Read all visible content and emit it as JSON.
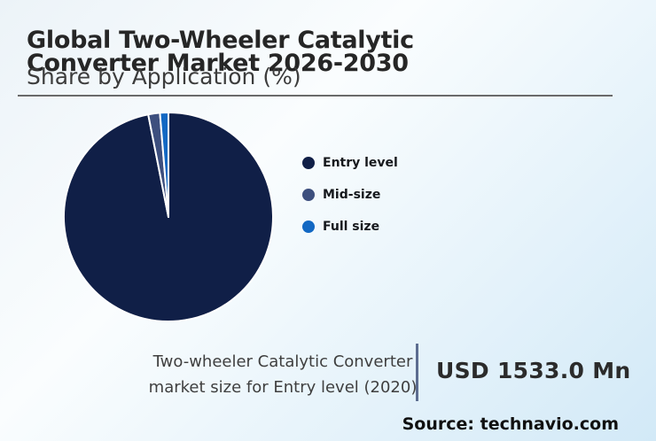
{
  "header": {
    "title_lines": [
      "Global Two-Wheeler Catalytic",
      "Converter Market 2026-2030"
    ],
    "subtitle": "Share by Application (%)"
  },
  "chart_data": {
    "type": "pie",
    "title": "Share by Application (%)",
    "unit": "%",
    "start_angle_deg": 0,
    "direction": "clockwise",
    "legend_position": "right",
    "slices": [
      {
        "label": "Entry level",
        "value": 96.9,
        "color": "#101f47"
      },
      {
        "label": "Mid-size",
        "value": 1.8,
        "color": "#3d4f7e"
      },
      {
        "label": "Full size",
        "value": 1.3,
        "color": "#1268c3"
      }
    ]
  },
  "stat": {
    "label_lines": [
      "Two-wheeler Catalytic Converter",
      "market size for Entry level (2020)"
    ],
    "value": "USD 1533.0 Mn"
  },
  "source": {
    "text": "Source: technavio.com"
  },
  "colors": {
    "background_start": "#ecf3f8",
    "background_end": "#d2e9f7",
    "title_text": "#262626",
    "subtitle_text": "#3c3c3c",
    "header_rule": "#6a6a6a",
    "stat_divider": "#5c6d90",
    "stat_text": "#3f3f3f",
    "stat_value_text": "#2b2b2b",
    "source_text": "#101010",
    "slice_separator": "#ffffff"
  }
}
